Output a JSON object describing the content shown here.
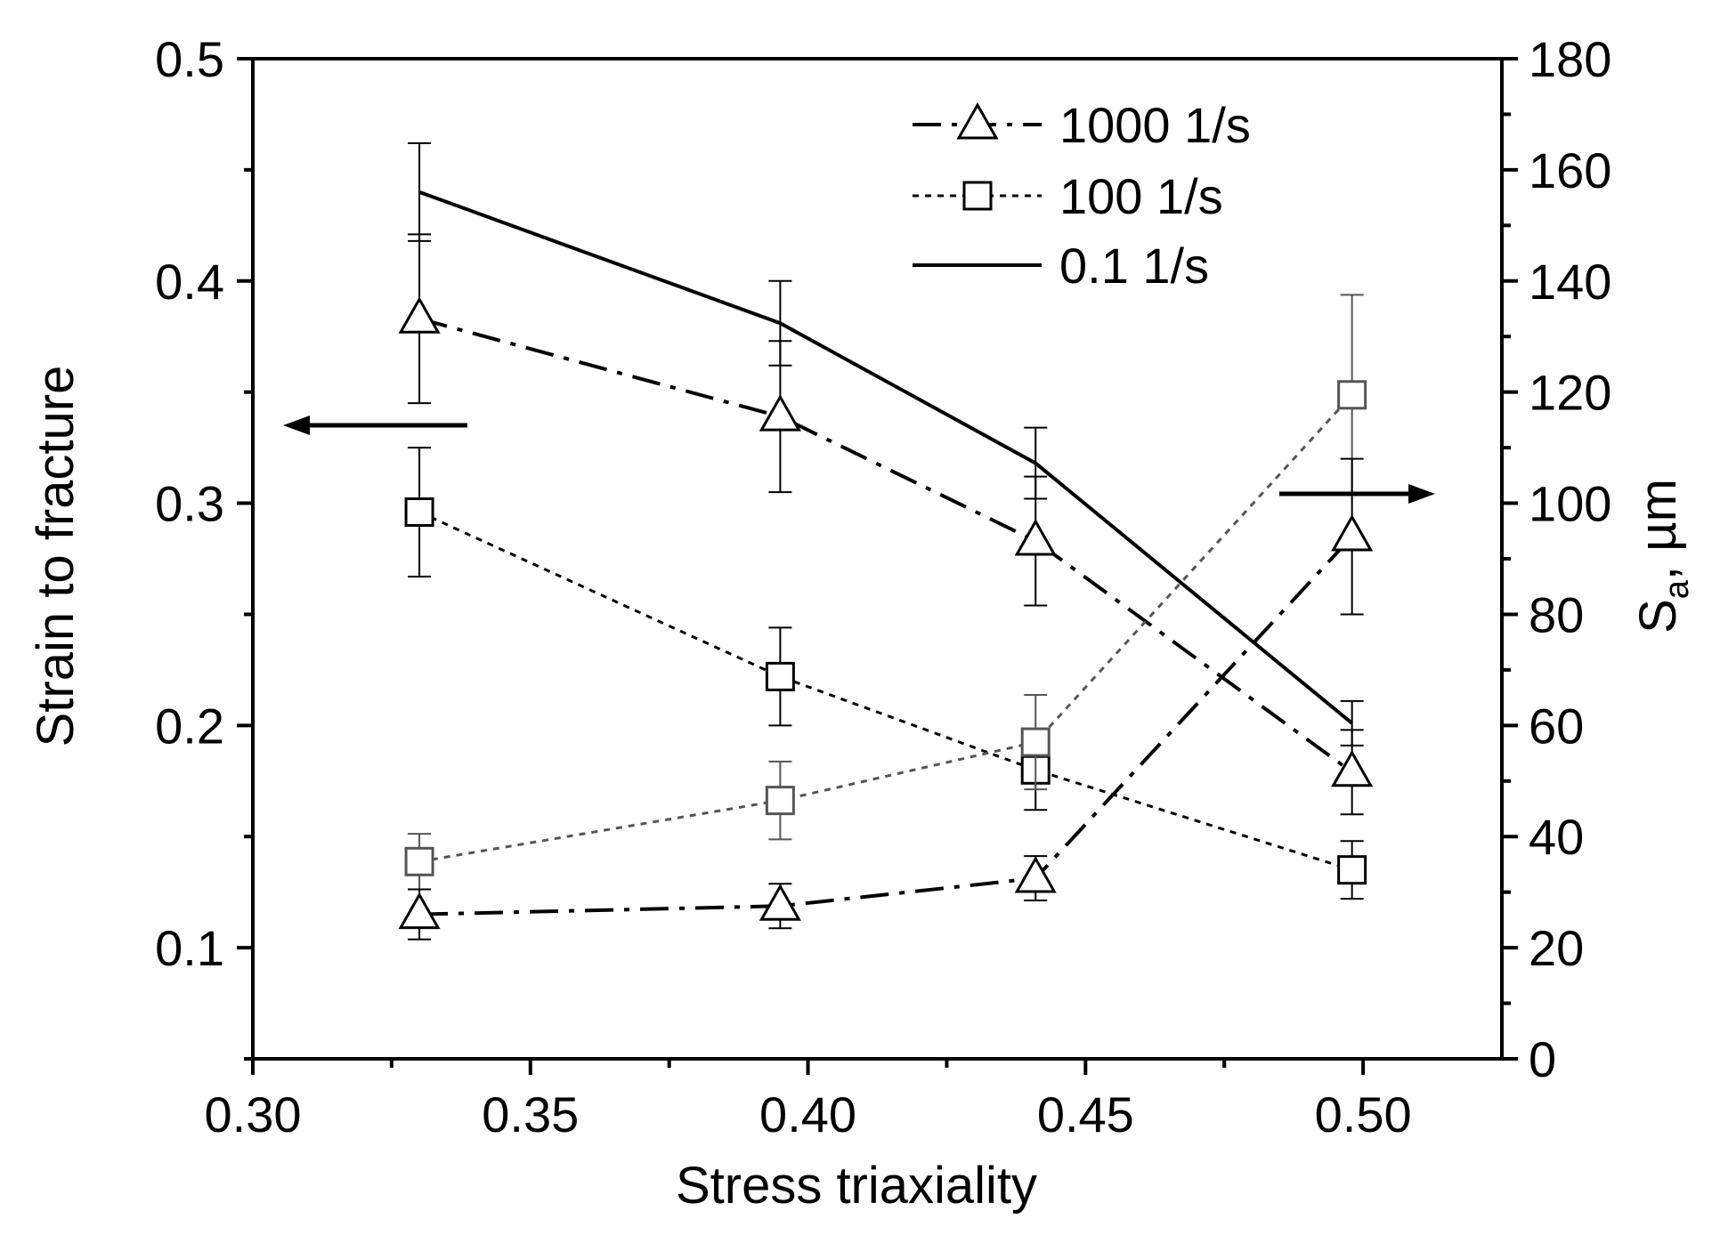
{
  "chart_data": {
    "type": "line",
    "xlabel": "Stress triaxiality",
    "ylabel": "Strain to fracture",
    "y2label_main": "S",
    "y2label_sub": "a",
    "y2label_tail": ", µm",
    "xlim": [
      0.3,
      0.525
    ],
    "ylim": [
      0.05,
      0.5
    ],
    "y2lim": [
      0,
      180
    ],
    "x_ticks": [
      "0.30",
      "0.35",
      "0.40",
      "0.45",
      "0.50"
    ],
    "x_tick_values": [
      0.3,
      0.35,
      0.4,
      0.45,
      0.5
    ],
    "y_ticks": [
      "0.1",
      "0.2",
      "0.3",
      "0.4",
      "0.5"
    ],
    "y_tick_values": [
      0.1,
      0.2,
      0.3,
      0.4,
      0.5
    ],
    "y2_ticks": [
      "0",
      "20",
      "40",
      "60",
      "80",
      "100",
      "120",
      "140",
      "160",
      "180"
    ],
    "y2_tick_values": [
      0,
      20,
      40,
      60,
      80,
      100,
      120,
      140,
      160,
      180
    ],
    "legend": [
      {
        "label": "1000 1/s",
        "style": "dashdot",
        "marker": "triangle"
      },
      {
        "label": "100  1/s",
        "style": "dotted",
        "marker": "square"
      },
      {
        "label": "0.1  1/s",
        "style": "solid",
        "marker": "none"
      }
    ],
    "legend_position": "top-right",
    "series": [
      {
        "name": "0.1  1/s",
        "axis": "left",
        "style": "solid",
        "marker": "none",
        "color": "#000000",
        "x": [
          0.33,
          0.395,
          0.441,
          0.498
        ],
        "y": [
          0.44,
          0.381,
          0.318,
          0.201
        ],
        "err": [
          0.022,
          0.019,
          0.016,
          0.01
        ]
      },
      {
        "name": "1000 1/s",
        "axis": "left",
        "style": "dashdot",
        "marker": "triangle",
        "color": "#000000",
        "x": [
          0.33,
          0.395,
          0.441,
          0.498
        ],
        "y": [
          0.383,
          0.339,
          0.283,
          0.179
        ],
        "err": [
          0.038,
          0.034,
          0.029,
          0.019
        ]
      },
      {
        "name": "100  1/s",
        "axis": "left",
        "style": "dotted",
        "marker": "square",
        "color": "#000000",
        "x": [
          0.33,
          0.395,
          0.441,
          0.498
        ],
        "y": [
          0.296,
          0.222,
          0.18,
          0.135
        ],
        "err": [
          0.029,
          0.022,
          0.018,
          0.013
        ]
      },
      {
        "name": "",
        "axis": "right",
        "style": "dotted",
        "marker": "square",
        "color": "#555555",
        "x": [
          0.33,
          0.395,
          0.441,
          0.498
        ],
        "y": [
          35.5,
          46.5,
          57,
          119.5
        ],
        "err": [
          5,
          7,
          8.5,
          18
        ]
      },
      {
        "name": "",
        "axis": "right",
        "style": "dashdot",
        "marker": "triangle",
        "color": "#000000",
        "x": [
          0.33,
          0.395,
          0.441,
          0.498
        ],
        "y": [
          26,
          27.5,
          32.5,
          94
        ],
        "err": [
          4.5,
          4,
          4,
          14
        ]
      }
    ],
    "arrows": [
      {
        "target": "left-axis",
        "direction": "left"
      },
      {
        "target": "right-axis",
        "direction": "right"
      }
    ]
  }
}
